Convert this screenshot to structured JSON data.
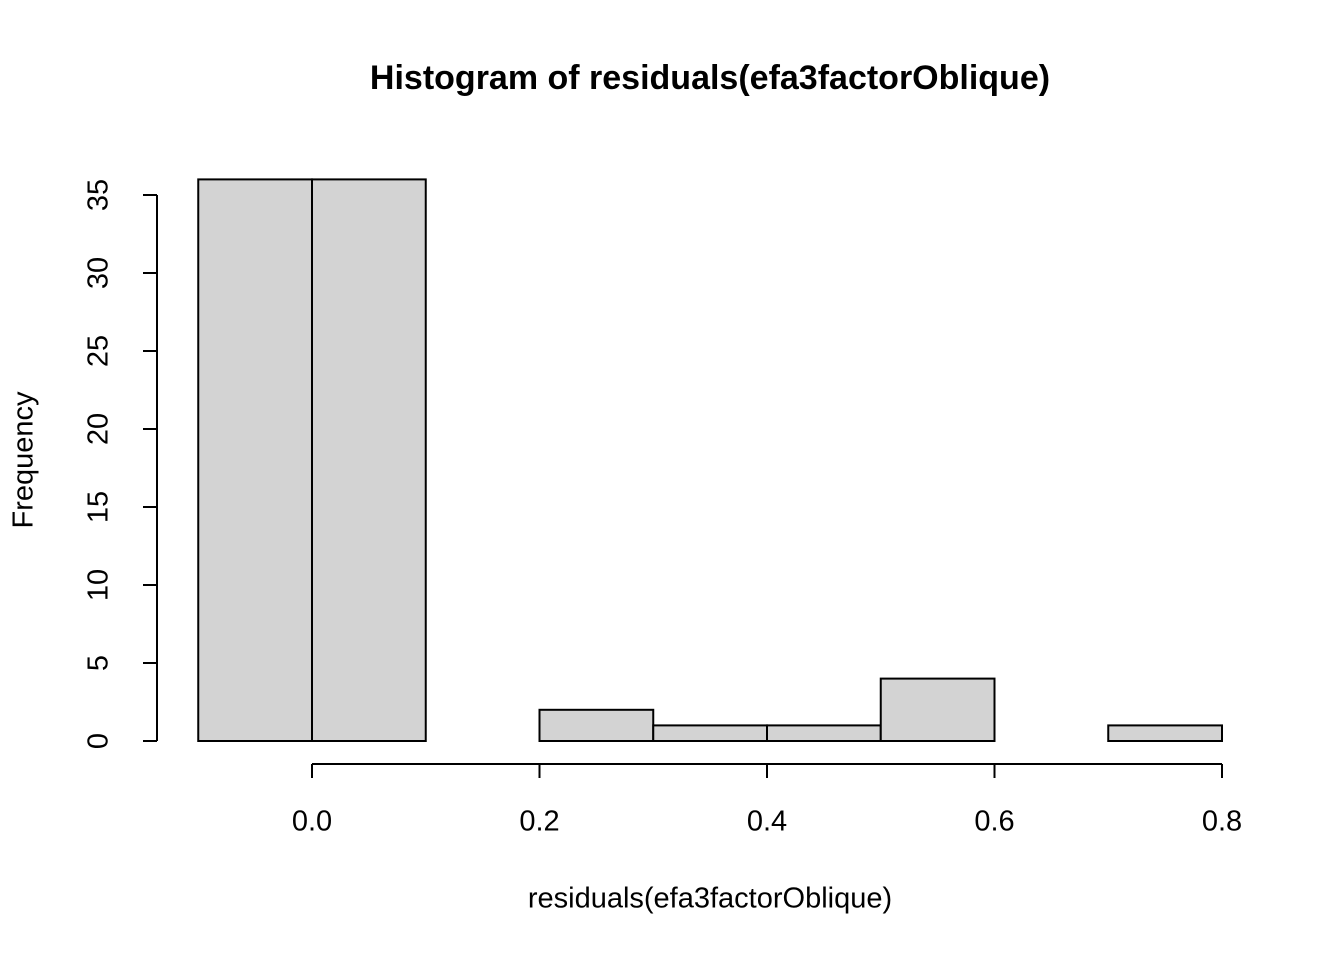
{
  "chart_data": {
    "type": "histogram",
    "title": "Histogram of residuals(efa3factorOblique)",
    "xlabel": "residuals(efa3factorOblique)",
    "ylabel": "Frequency",
    "bins": [
      -0.1,
      0,
      0.1,
      0.2,
      0.3,
      0.4,
      0.5,
      0.6,
      0.7,
      0.8
    ],
    "values": [
      36,
      36,
      0,
      2,
      1,
      1,
      4,
      0,
      1
    ],
    "color": "#d3d3d3",
    "edgecolor": "#000000",
    "xlim": [
      0,
      0.8
    ],
    "xticks": [
      {
        "value": 0,
        "label": "0.0"
      },
      0.2,
      0.4,
      0.6,
      0.8
    ],
    "ylim": [
      0,
      35
    ],
    "yticks": [
      0,
      5,
      10,
      15,
      20,
      25,
      30,
      35
    ]
  }
}
